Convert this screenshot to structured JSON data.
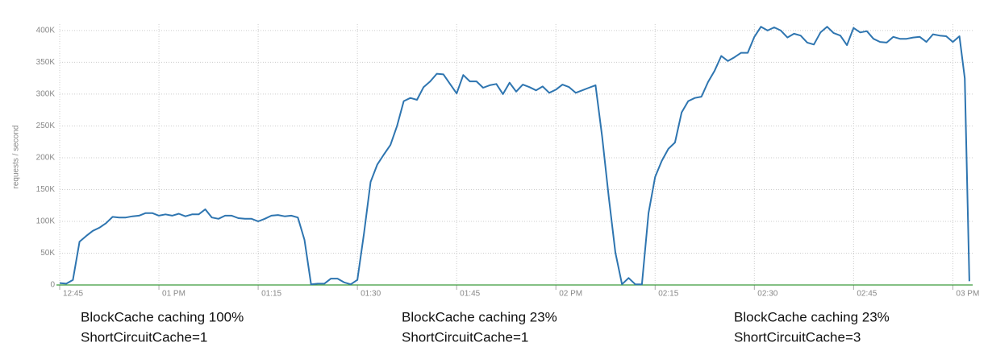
{
  "chart_data": {
    "type": "line",
    "y_label": "requests / second",
    "color": "#2e75b0",
    "x": [
      0,
      1,
      2,
      3,
      4,
      5,
      6,
      7,
      8,
      9,
      10,
      11,
      12,
      13,
      14,
      15,
      16,
      17,
      18,
      19,
      20,
      21,
      22,
      23,
      24,
      25,
      26,
      27,
      28,
      29,
      30,
      31,
      32,
      33,
      34,
      35,
      36,
      37,
      38,
      39,
      40,
      41,
      42,
      43,
      44,
      45,
      46,
      47,
      48,
      49,
      50,
      51,
      52,
      53,
      54,
      55,
      56,
      57,
      58,
      59,
      60,
      61,
      62,
      63,
      64,
      65,
      66,
      67,
      68,
      69,
      70,
      71,
      72,
      73,
      74,
      75,
      76,
      77,
      78,
      79,
      80,
      81,
      82,
      83,
      84,
      85,
      86,
      87,
      88,
      89,
      90,
      91,
      92,
      93,
      94,
      95,
      96,
      97,
      98,
      99,
      100,
      101,
      102,
      103,
      104,
      105,
      106,
      107,
      108,
      109,
      110,
      111,
      112,
      113,
      114,
      115,
      116,
      117,
      118,
      119,
      120,
      121,
      122,
      123,
      124,
      125,
      126,
      127,
      128,
      129,
      130,
      131,
      132,
      133,
      134,
      135,
      136,
      136.8,
      137.5
    ],
    "values": [
      3000,
      2000,
      8000,
      68000,
      77000,
      85000,
      90000,
      97000,
      107000,
      106000,
      106000,
      108000,
      109000,
      113000,
      113000,
      109000,
      111000,
      109000,
      112000,
      108000,
      111000,
      111000,
      119000,
      106000,
      104000,
      109000,
      109000,
      105000,
      104000,
      104000,
      100000,
      104000,
      109000,
      110000,
      108000,
      109000,
      106000,
      71000,
      1000,
      2000,
      2000,
      10000,
      10000,
      4000,
      1000,
      8000,
      81000,
      162000,
      189000,
      205000,
      220000,
      250000,
      289000,
      294000,
      291000,
      311000,
      320000,
      332000,
      331000,
      316000,
      301000,
      330000,
      320000,
      320000,
      310000,
      314000,
      316000,
      300000,
      318000,
      304000,
      315000,
      311000,
      306000,
      312000,
      302000,
      307000,
      315000,
      311000,
      302000,
      306000,
      310000,
      314000,
      233000,
      138000,
      51000,
      1000,
      11000,
      1000,
      1000,
      113000,
      170000,
      195000,
      214000,
      224000,
      271000,
      289000,
      294000,
      296000,
      319000,
      337000,
      360000,
      352000,
      358000,
      365000,
      365000,
      390000,
      406000,
      400000,
      405000,
      400000,
      389000,
      395000,
      392000,
      381000,
      378000,
      397000,
      406000,
      396000,
      392000,
      377000,
      404000,
      397000,
      399000,
      387000,
      382000,
      381000,
      390000,
      387000,
      387000,
      389000,
      390000,
      382000,
      394000,
      392000,
      391000,
      382000,
      391000,
      325000,
      6000
    ],
    "xlim": [
      0,
      138
    ],
    "xticks": [
      {
        "value": 0,
        "label": "12:45"
      },
      {
        "value": 15,
        "label": "01 PM"
      },
      {
        "value": 30,
        "label": "01:15"
      },
      {
        "value": 45,
        "label": "01:30"
      },
      {
        "value": 60,
        "label": "01:45"
      },
      {
        "value": 75,
        "label": "02 PM"
      },
      {
        "value": 90,
        "label": "02:15"
      },
      {
        "value": 105,
        "label": "02:30"
      },
      {
        "value": 120,
        "label": "02:45"
      },
      {
        "value": 135,
        "label": "03 PM"
      }
    ],
    "ylim": [
      0,
      410000
    ],
    "yticks": [
      {
        "value": 0,
        "label": "0"
      },
      {
        "value": 50000,
        "label": "50K"
      },
      {
        "value": 100000,
        "label": "100K"
      },
      {
        "value": 150000,
        "label": "150K"
      },
      {
        "value": 200000,
        "label": "200K"
      },
      {
        "value": 250000,
        "label": "250K"
      },
      {
        "value": 300000,
        "label": "300K"
      },
      {
        "value": 350000,
        "label": "350K"
      },
      {
        "value": 400000,
        "label": "400K"
      }
    ],
    "grid": true,
    "annotations": [
      "BlockCache caching 100%",
      "ShortCircuitCache=1",
      "BlockCache caching 23%",
      "ShortCircuitCache=1",
      "BlockCache caching 23%",
      "ShortCircuitCache=3"
    ]
  }
}
